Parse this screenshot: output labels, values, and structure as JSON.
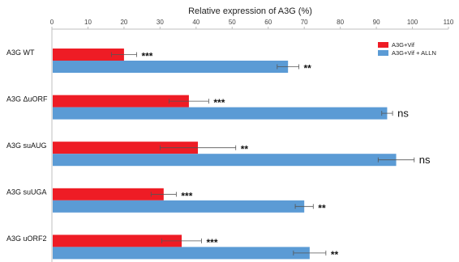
{
  "chart_data": {
    "type": "bar",
    "orientation": "horizontal",
    "title": "Relative expression of A3G (%)",
    "xlim": [
      0,
      110
    ],
    "xticks": [
      0,
      10,
      20,
      30,
      40,
      50,
      60,
      70,
      80,
      90,
      100,
      110
    ],
    "categories": [
      "A3G WT",
      "A3G ΔuORF",
      "A3G suAUG",
      "A3G suUGA",
      "A3G uORF2"
    ],
    "series": [
      {
        "name": "A3G+Vif",
        "color": "#ee1c25",
        "values": [
          20,
          38,
          40.5,
          31,
          36
        ],
        "errors": [
          3.5,
          5.5,
          10.5,
          3.5,
          5.5
        ],
        "significance": [
          "***",
          "***",
          "**",
          "***",
          "***"
        ]
      },
      {
        "name": "A3G+Vif + ALLN",
        "color": "#5b9bd5",
        "values": [
          65.5,
          93,
          95.5,
          70,
          71.5
        ],
        "errors": [
          3,
          1.5,
          5,
          2.5,
          4.5
        ],
        "significance": [
          "**",
          "ns",
          "ns",
          "**",
          "**"
        ]
      }
    ],
    "legend_position": "top-right",
    "grid": false
  }
}
